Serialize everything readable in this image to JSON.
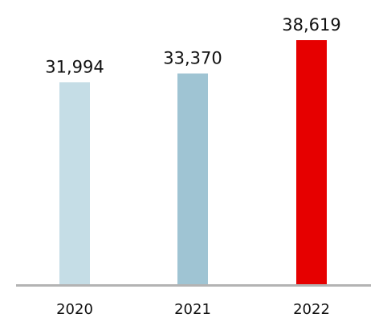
{
  "chart_data": {
    "type": "bar",
    "categories": [
      "2020",
      "2021",
      "2022"
    ],
    "values": [
      31994,
      33370,
      38619
    ],
    "value_labels": [
      "31,994",
      "33,370",
      "38,619"
    ],
    "title": "",
    "xlabel": "",
    "ylabel": "",
    "ylim": [
      0,
      38619
    ],
    "grid": false,
    "legend": "none",
    "colors": [
      "#c5dde6",
      "#9fc4d3",
      "#e60000"
    ],
    "axis_color": "#b3b3b3"
  }
}
